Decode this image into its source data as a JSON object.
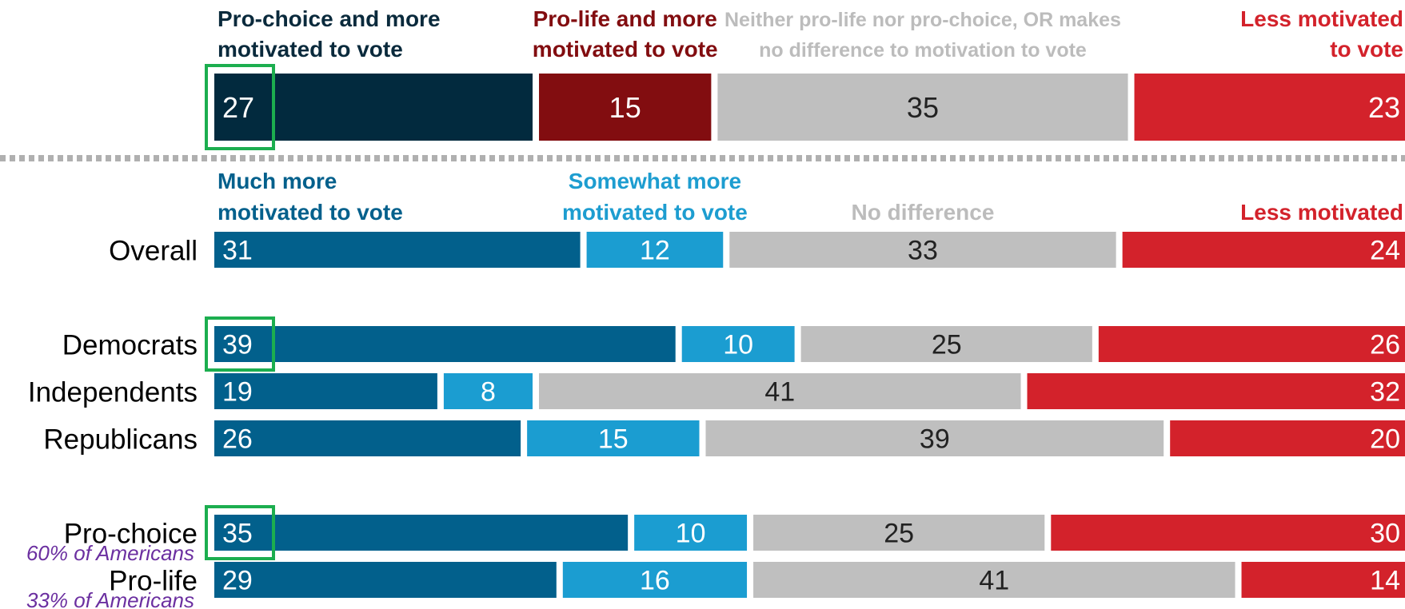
{
  "chart_data": [
    {
      "type": "bar",
      "orientation": "horizontal",
      "stacked": "100%",
      "categories": [
        ""
      ],
      "series": [
        {
          "name": "Pro-choice and more motivated to vote",
          "values": [
            27
          ],
          "color": "#022a3e",
          "header_color": "#0a2a3c",
          "value_color": "#ffffff"
        },
        {
          "name": "Pro-life and more motivated to vote",
          "values": [
            15
          ],
          "color": "#820d10",
          "header_color": "#820d10",
          "value_color": "#ffffff"
        },
        {
          "name": "Neither pro-life nor pro-choice, OR makes no difference to motivation to vote",
          "values": [
            35
          ],
          "color": "#bfbfbf",
          "header_color": "#bcbcbc",
          "value_color": "#222222"
        },
        {
          "name": "Less motivated to vote",
          "values": [
            23
          ],
          "color": "#d3222b",
          "header_color": "#d3222b",
          "value_color": "#ffffff"
        }
      ],
      "legend_placement": "top",
      "highlighted_values": [
        {
          "category": "",
          "series": "Pro-choice and more motivated to vote"
        }
      ]
    },
    {
      "type": "bar",
      "orientation": "horizontal",
      "stacked": "100%",
      "categories": [
        "Overall",
        "Democrats",
        "Independents",
        "Republicans",
        "Pro-choice",
        "Pro-life"
      ],
      "category_notes": {
        "Pro-choice": "60% of Americans",
        "Pro-life": "33% of Americans"
      },
      "series": [
        {
          "name": "Much more motivated to vote",
          "values": [
            31,
            39,
            19,
            26,
            35,
            29
          ],
          "color": "#02608c",
          "header_color": "#03608c",
          "value_color": "#ffffff"
        },
        {
          "name": "Somewhat more motivated to vote",
          "values": [
            12,
            10,
            8,
            15,
            10,
            16
          ],
          "color": "#1b9dd1",
          "header_color": "#1d9dd0",
          "value_color": "#ffffff"
        },
        {
          "name": "No difference",
          "values": [
            33,
            25,
            41,
            39,
            25,
            41
          ],
          "color": "#bfbfbf",
          "header_color": "#bcbcbc",
          "value_color": "#222222"
        },
        {
          "name": "Less motivated",
          "values": [
            24,
            26,
            32,
            20,
            30,
            14
          ],
          "color": "#d3222b",
          "header_color": "#d3222b",
          "value_color": "#ffffff"
        }
      ],
      "legend_placement": "top",
      "highlighted_values": [
        {
          "category": "Democrats",
          "series": "Much more motivated to vote"
        },
        {
          "category": "Pro-choice",
          "series": "Much more motivated to vote"
        }
      ]
    }
  ],
  "colors": {
    "highlight_box": "#1cae4f",
    "note_text": "#6b2fa0",
    "divider": "#b0b0b0",
    "category_text": "#000000"
  }
}
